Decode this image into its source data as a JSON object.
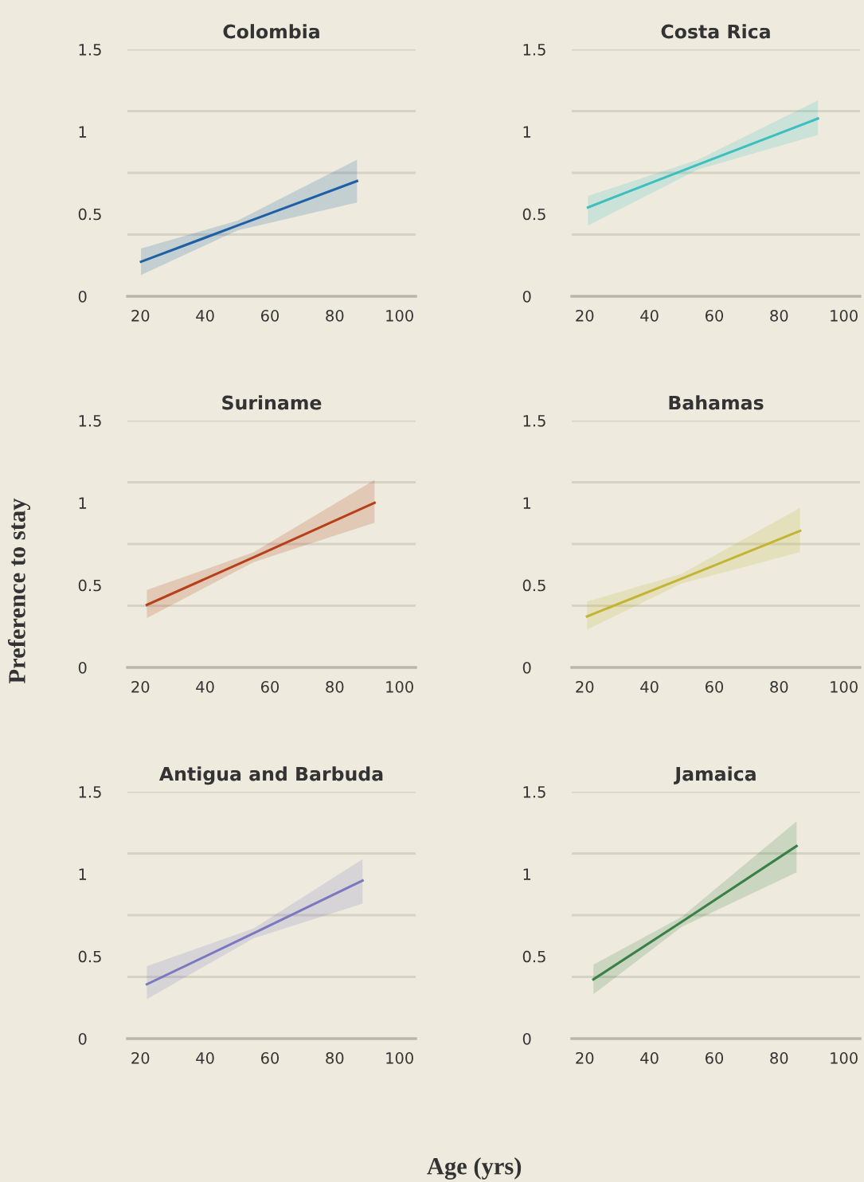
{
  "chart_data": [
    {
      "type": "line",
      "title": "Colombia",
      "xlim": [
        16,
        105
      ],
      "ylim": [
        0,
        1.5
      ],
      "xticks": [
        20,
        40,
        60,
        80,
        100
      ],
      "yticks": [
        0,
        0.5,
        1,
        1.5
      ],
      "grid": false,
      "ref_lines": [
        {
          "axis": "y",
          "value": 0.375,
          "color": "#d6d2c4"
        },
        {
          "axis": "y",
          "value": 0.75,
          "color": "#d6d2c4"
        },
        {
          "axis": "y",
          "value": 1.125,
          "color": "#d6d2c4"
        },
        {
          "axis": "y",
          "value": 1.5,
          "color": "#d6d2c4"
        }
      ],
      "series": [
        {
          "color": "#1f5fa6",
          "x": [
            20.2,
            50,
            86.9
          ],
          "values": [
            0.21,
            0.43,
            0.7
          ],
          "lower": [
            0.13,
            0.4,
            0.57
          ],
          "upper": [
            0.29,
            0.46,
            0.83
          ]
        }
      ]
    },
    {
      "type": "line",
      "title": "Costa Rica",
      "xlim": [
        16,
        105
      ],
      "ylim": [
        0,
        1.5
      ],
      "xticks": [
        20,
        40,
        60,
        80,
        100
      ],
      "yticks": [
        0,
        0.5,
        1,
        1.5
      ],
      "grid": false,
      "ref_lines": [
        {
          "axis": "y",
          "value": 0.375,
          "color": "#d6d2c4"
        },
        {
          "axis": "y",
          "value": 0.75,
          "color": "#d6d2c4"
        },
        {
          "axis": "y",
          "value": 1.125,
          "color": "#d6d2c4"
        },
        {
          "axis": "y",
          "value": 1.5,
          "color": "#d6d2c4"
        }
      ],
      "series": [
        {
          "color": "#3dbfbf",
          "x": [
            21,
            55,
            92
          ],
          "values": [
            0.54,
            0.8,
            1.08
          ],
          "lower": [
            0.43,
            0.77,
            0.98
          ],
          "upper": [
            0.61,
            0.83,
            1.19
          ]
        }
      ]
    },
    {
      "type": "line",
      "title": "Suriname",
      "ylabel": "Preference to stay",
      "xlim": [
        16,
        105
      ],
      "ylim": [
        0,
        1.5
      ],
      "xticks": [
        20,
        40,
        60,
        80,
        100
      ],
      "yticks": [
        0,
        0.5,
        1,
        1.5
      ],
      "grid": false,
      "ref_lines": [
        {
          "axis": "y",
          "value": 0.375,
          "color": "#d6d2c4"
        },
        {
          "axis": "y",
          "value": 0.75,
          "color": "#d6d2c4"
        },
        {
          "axis": "y",
          "value": 1.125,
          "color": "#d6d2c4"
        },
        {
          "axis": "y",
          "value": 1.5,
          "color": "#d6d2c4"
        }
      ],
      "series": [
        {
          "color": "#b5401a",
          "x": [
            22,
            55,
            92.3
          ],
          "values": [
            0.38,
            0.67,
            1.0
          ],
          "lower": [
            0.3,
            0.64,
            0.88
          ],
          "upper": [
            0.47,
            0.7,
            1.14
          ]
        }
      ]
    },
    {
      "type": "line",
      "title": "Bahamas",
      "xlim": [
        16,
        105
      ],
      "ylim": [
        0,
        1.5
      ],
      "xticks": [
        20,
        40,
        60,
        80,
        100
      ],
      "yticks": [
        0,
        0.5,
        1,
        1.5
      ],
      "grid": false,
      "ref_lines": [
        {
          "axis": "y",
          "value": 0.375,
          "color": "#d6d2c4"
        },
        {
          "axis": "y",
          "value": 0.75,
          "color": "#d6d2c4"
        },
        {
          "axis": "y",
          "value": 1.125,
          "color": "#d6d2c4"
        },
        {
          "axis": "y",
          "value": 1.5,
          "color": "#d6d2c4"
        }
      ],
      "series": [
        {
          "color": "#c4b436",
          "x": [
            20.7,
            50,
            86.5
          ],
          "values": [
            0.31,
            0.54,
            0.83
          ],
          "lower": [
            0.23,
            0.51,
            0.7
          ],
          "upper": [
            0.4,
            0.57,
            0.97
          ]
        }
      ]
    },
    {
      "type": "line",
      "title": "Antigua and Barbuda",
      "xlim": [
        16,
        105
      ],
      "ylim": [
        0,
        1.5
      ],
      "xticks": [
        20,
        40,
        60,
        80,
        100
      ],
      "yticks": [
        0,
        0.5,
        1,
        1.5
      ],
      "grid": false,
      "ref_lines": [
        {
          "axis": "y",
          "value": 0.375,
          "color": "#d6d2c4"
        },
        {
          "axis": "y",
          "value": 0.75,
          "color": "#d6d2c4"
        },
        {
          "axis": "y",
          "value": 1.125,
          "color": "#d6d2c4"
        },
        {
          "axis": "y",
          "value": 1.5,
          "color": "#d6d2c4"
        }
      ],
      "series": [
        {
          "color": "#7b78bf",
          "x": [
            22,
            55,
            88.6
          ],
          "values": [
            0.33,
            0.64,
            0.96
          ],
          "lower": [
            0.24,
            0.61,
            0.82
          ],
          "upper": [
            0.44,
            0.67,
            1.09
          ]
        }
      ]
    },
    {
      "type": "line",
      "title": "Jamaica",
      "xlabel": "Age (yrs)",
      "xlim": [
        16,
        105
      ],
      "ylim": [
        0,
        1.5
      ],
      "xticks": [
        20,
        40,
        60,
        80,
        100
      ],
      "yticks": [
        0,
        0.5,
        1,
        1.5
      ],
      "grid": false,
      "ref_lines": [
        {
          "axis": "y",
          "value": 0.375,
          "color": "#d6d2c4"
        },
        {
          "axis": "y",
          "value": 0.75,
          "color": "#d6d2c4"
        },
        {
          "axis": "y",
          "value": 1.125,
          "color": "#d6d2c4"
        },
        {
          "axis": "y",
          "value": 1.5,
          "color": "#d6d2c4"
        }
      ],
      "series": [
        {
          "color": "#3a8047",
          "x": [
            22.7,
            50,
            85.4
          ],
          "values": [
            0.36,
            0.71,
            1.17
          ],
          "lower": [
            0.27,
            0.68,
            1.01
          ],
          "upper": [
            0.45,
            0.74,
            1.32
          ]
        }
      ]
    }
  ]
}
